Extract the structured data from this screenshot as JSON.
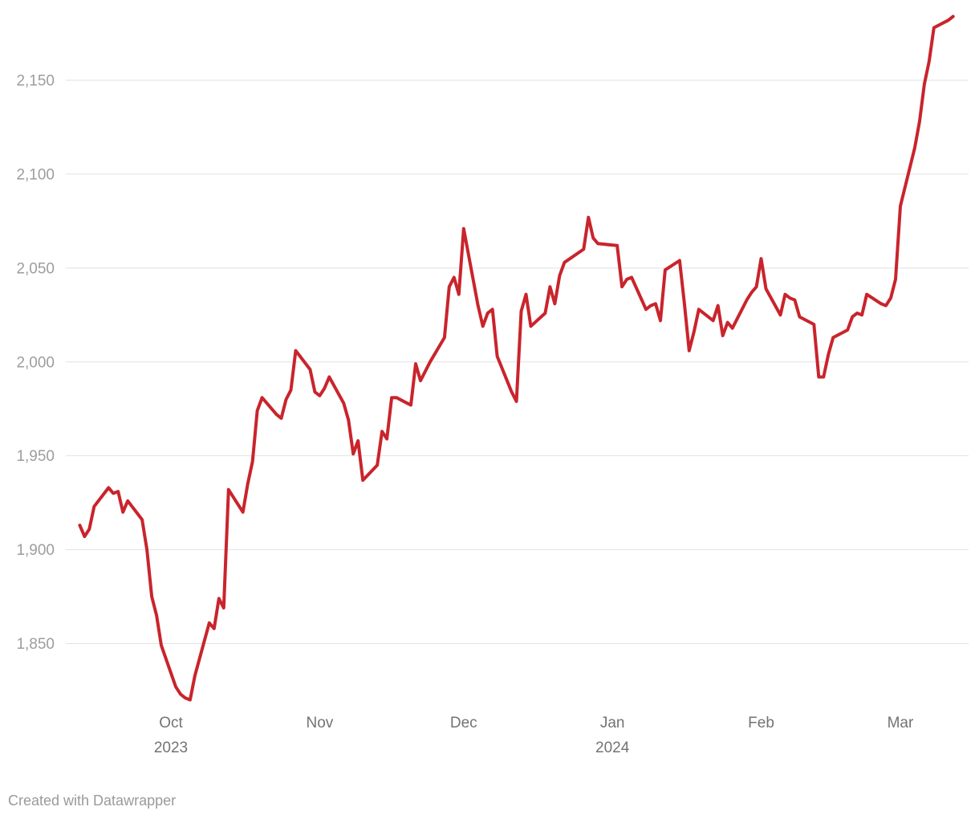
{
  "footer": {
    "credit": "Created with Datawrapper"
  },
  "chart_data": {
    "type": "line",
    "title": "",
    "legend": "none",
    "grid": "horizontal",
    "ylim": [
      1815,
      2190
    ],
    "xlim": [
      "2023-09-12",
      "2024-03-12"
    ],
    "colors": {
      "line": "#c9242c",
      "grid": "#e2e2e2",
      "y_labels": "#9d9d9d",
      "x_labels": "#737373",
      "credit": "#9a9a9a",
      "background": "#ffffff"
    },
    "y_ticks": [
      {
        "value": 1850,
        "label": "1,850"
      },
      {
        "value": 1900,
        "label": "1,900"
      },
      {
        "value": 1950,
        "label": "1,950"
      },
      {
        "value": 2000,
        "label": "2,000"
      },
      {
        "value": 2050,
        "label": "2,050"
      },
      {
        "value": 2100,
        "label": "2,100"
      },
      {
        "value": 2150,
        "label": "2,150"
      }
    ],
    "x_ticks": [
      {
        "date": "2023-10-01",
        "label": "Oct",
        "year_label": "2023"
      },
      {
        "date": "2023-11-01",
        "label": "Nov"
      },
      {
        "date": "2023-12-01",
        "label": "Dec"
      },
      {
        "date": "2024-01-01",
        "label": "Jan",
        "year_label": "2024"
      },
      {
        "date": "2024-02-01",
        "label": "Feb"
      },
      {
        "date": "2024-03-01",
        "label": "Mar"
      }
    ],
    "dates": [
      "2023-09-12",
      "2023-09-13",
      "2023-09-14",
      "2023-09-15",
      "2023-09-18",
      "2023-09-19",
      "2023-09-20",
      "2023-09-21",
      "2023-09-22",
      "2023-09-25",
      "2023-09-26",
      "2023-09-27",
      "2023-09-28",
      "2023-09-29",
      "2023-10-02",
      "2023-10-03",
      "2023-10-04",
      "2023-10-05",
      "2023-10-06",
      "2023-10-09",
      "2023-10-10",
      "2023-10-11",
      "2023-10-12",
      "2023-10-13",
      "2023-10-16",
      "2023-10-17",
      "2023-10-18",
      "2023-10-19",
      "2023-10-20",
      "2023-10-23",
      "2023-10-24",
      "2023-10-25",
      "2023-10-26",
      "2023-10-27",
      "2023-10-30",
      "2023-10-31",
      "2023-11-01",
      "2023-11-02",
      "2023-11-03",
      "2023-11-06",
      "2023-11-07",
      "2023-11-08",
      "2023-11-09",
      "2023-11-10",
      "2023-11-13",
      "2023-11-14",
      "2023-11-15",
      "2023-11-16",
      "2023-11-17",
      "2023-11-20",
      "2023-11-21",
      "2023-11-22",
      "2023-11-24",
      "2023-11-27",
      "2023-11-28",
      "2023-11-29",
      "2023-11-30",
      "2023-12-01",
      "2023-12-04",
      "2023-12-05",
      "2023-12-06",
      "2023-12-07",
      "2023-12-08",
      "2023-12-11",
      "2023-12-12",
      "2023-12-13",
      "2023-12-14",
      "2023-12-15",
      "2023-12-18",
      "2023-12-19",
      "2023-12-20",
      "2023-12-21",
      "2023-12-22",
      "2023-12-26",
      "2023-12-27",
      "2023-12-28",
      "2023-12-29",
      "2024-01-02",
      "2024-01-03",
      "2024-01-04",
      "2024-01-05",
      "2024-01-08",
      "2024-01-09",
      "2024-01-10",
      "2024-01-11",
      "2024-01-12",
      "2024-01-15",
      "2024-01-16",
      "2024-01-17",
      "2024-01-18",
      "2024-01-19",
      "2024-01-22",
      "2024-01-23",
      "2024-01-24",
      "2024-01-25",
      "2024-01-26",
      "2024-01-29",
      "2024-01-30",
      "2024-01-31",
      "2024-02-01",
      "2024-02-02",
      "2024-02-05",
      "2024-02-06",
      "2024-02-07",
      "2024-02-08",
      "2024-02-09",
      "2024-02-12",
      "2024-02-13",
      "2024-02-14",
      "2024-02-15",
      "2024-02-16",
      "2024-02-19",
      "2024-02-20",
      "2024-02-21",
      "2024-02-22",
      "2024-02-23",
      "2024-02-26",
      "2024-02-27",
      "2024-02-28",
      "2024-02-29",
      "2024-03-01",
      "2024-03-04",
      "2024-03-05",
      "2024-03-06",
      "2024-03-07",
      "2024-03-08",
      "2024-03-11",
      "2024-03-12"
    ],
    "values": [
      1913,
      1907,
      1911,
      1923,
      1933,
      1930,
      1931,
      1920,
      1926,
      1916,
      1900,
      1875,
      1865,
      1849,
      1827,
      1823,
      1821,
      1820,
      1833,
      1861,
      1858,
      1874,
      1869,
      1932,
      1920,
      1935,
      1947,
      1974,
      1981,
      1972,
      1970,
      1980,
      1985,
      2006,
      1996,
      1984,
      1982,
      1986,
      1992,
      1978,
      1969,
      1951,
      1958,
      1937,
      1945,
      1963,
      1959,
      1981,
      1981,
      1977,
      1999,
      1990,
      2000,
      2013,
      2040,
      2045,
      2036,
      2071,
      2030,
      2019,
      2026,
      2028,
      2003,
      1984,
      1979,
      2027,
      2036,
      2019,
      2026,
      2040,
      2031,
      2046,
      2053,
      2060,
      2077,
      2066,
      2063,
      2062,
      2040,
      2044,
      2045,
      2028,
      2030,
      2031,
      2022,
      2049,
      2054,
      2031,
      2006,
      2016,
      2028,
      2022,
      2030,
      2014,
      2021,
      2018,
      2033,
      2037,
      2040,
      2055,
      2039,
      2025,
      2036,
      2034,
      2033,
      2024,
      2020,
      1992,
      1992,
      2004,
      2013,
      2017,
      2024,
      2026,
      2025,
      2036,
      2031,
      2030,
      2034,
      2044,
      2083,
      2114,
      2128,
      2148,
      2160,
      2178,
      2182,
      2184
    ]
  }
}
